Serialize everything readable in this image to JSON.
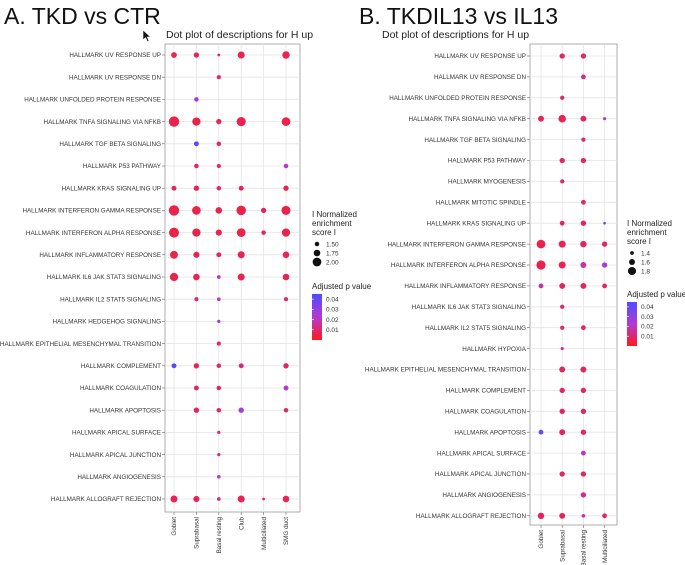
{
  "cursor": {
    "icon": "mouse-pointer-icon"
  },
  "colors": {
    "low_p": "#ff1a1a",
    "high_p": "#4d4dff",
    "mid_p": "#b23ad1"
  },
  "chart_data": [
    {
      "type": "scatter",
      "panel_title": "A. TKD vs CTR",
      "title": "Dot plot of descriptions for H up",
      "categories": [
        "Goblet",
        "Suprabasal",
        "Basal resting",
        "Club",
        "Multiciliated",
        "SMG duct"
      ],
      "rows": [
        "HALLMARK UV RESPONSE UP",
        "HALLMARK UV RESPONSE DN",
        "HALLMARK UNFOLDED PROTEIN RESPONSE",
        "HALLMARK TNFA SIGNALING VIA NFKB",
        "HALLMARK TGF BETA SIGNALING",
        "HALLMARK P53 PATHWAY",
        "HALLMARK KRAS SIGNALING UP",
        "HALLMARK INTERFERON GAMMA RESPONSE",
        "HALLMARK INTERFERON ALPHA RESPONSE",
        "HALLMARK INFLAMMATORY RESPONSE",
        "HALLMARK IL6 JAK STAT3 SIGNALING",
        "HALLMARK IL2 STAT5 SIGNALING",
        "HALLMARK HEDGEHOG SIGNALING",
        "HALLMARK EPITHELIAL MESENCHYMAL TRANSITION",
        "HALLMARK COMPLEMENT",
        "HALLMARK COAGULATION",
        "HALLMARK APOPTOSIS",
        "HALLMARK APICAL SURFACE",
        "HALLMARK APICAL JUNCTION",
        "HALLMARK ANGIOGENESIS",
        "HALLMARK ALLOGRAFT REJECTION"
      ],
      "size_range": [
        1.25,
        2.2
      ],
      "color_range": [
        0.0,
        0.045
      ],
      "points": [
        {
          "row": 0,
          "col": 0,
          "nes": 1.65,
          "p": 0.008
        },
        {
          "row": 0,
          "col": 1,
          "nes": 1.6,
          "p": 0.008
        },
        {
          "row": 0,
          "col": 2,
          "nes": 1.3,
          "p": 0.01
        },
        {
          "row": 0,
          "col": 3,
          "nes": 1.8,
          "p": 0.007
        },
        {
          "row": 0,
          "col": 5,
          "nes": 1.85,
          "p": 0.007
        },
        {
          "row": 1,
          "col": 2,
          "nes": 1.45,
          "p": 0.01
        },
        {
          "row": 2,
          "col": 1,
          "nes": 1.5,
          "p": 0.024
        },
        {
          "row": 3,
          "col": 0,
          "nes": 2.2,
          "p": 0.006
        },
        {
          "row": 3,
          "col": 1,
          "nes": 1.95,
          "p": 0.006
        },
        {
          "row": 3,
          "col": 2,
          "nes": 1.6,
          "p": 0.008
        },
        {
          "row": 3,
          "col": 3,
          "nes": 2.05,
          "p": 0.006
        },
        {
          "row": 3,
          "col": 5,
          "nes": 2.0,
          "p": 0.006
        },
        {
          "row": 4,
          "col": 1,
          "nes": 1.55,
          "p": 0.042
        },
        {
          "row": 4,
          "col": 2,
          "nes": 1.5,
          "p": 0.009
        },
        {
          "row": 5,
          "col": 1,
          "nes": 1.5,
          "p": 0.009
        },
        {
          "row": 5,
          "col": 2,
          "nes": 1.45,
          "p": 0.009
        },
        {
          "row": 5,
          "col": 5,
          "nes": 1.5,
          "p": 0.022
        },
        {
          "row": 6,
          "col": 0,
          "nes": 1.55,
          "p": 0.009
        },
        {
          "row": 6,
          "col": 1,
          "nes": 1.6,
          "p": 0.008
        },
        {
          "row": 6,
          "col": 2,
          "nes": 1.5,
          "p": 0.009
        },
        {
          "row": 6,
          "col": 3,
          "nes": 1.55,
          "p": 0.008
        },
        {
          "row": 6,
          "col": 5,
          "nes": 1.6,
          "p": 0.008
        },
        {
          "row": 7,
          "col": 0,
          "nes": 2.2,
          "p": 0.006
        },
        {
          "row": 7,
          "col": 1,
          "nes": 2.0,
          "p": 0.006
        },
        {
          "row": 7,
          "col": 2,
          "nes": 1.75,
          "p": 0.007
        },
        {
          "row": 7,
          "col": 3,
          "nes": 2.1,
          "p": 0.006
        },
        {
          "row": 7,
          "col": 4,
          "nes": 1.6,
          "p": 0.008
        },
        {
          "row": 7,
          "col": 5,
          "nes": 2.05,
          "p": 0.006
        },
        {
          "row": 8,
          "col": 0,
          "nes": 2.15,
          "p": 0.006
        },
        {
          "row": 8,
          "col": 1,
          "nes": 1.95,
          "p": 0.006
        },
        {
          "row": 8,
          "col": 2,
          "nes": 1.7,
          "p": 0.007
        },
        {
          "row": 8,
          "col": 3,
          "nes": 2.0,
          "p": 0.006
        },
        {
          "row": 8,
          "col": 4,
          "nes": 1.5,
          "p": 0.009
        },
        {
          "row": 8,
          "col": 5,
          "nes": 1.95,
          "p": 0.006
        },
        {
          "row": 9,
          "col": 0,
          "nes": 1.9,
          "p": 0.006
        },
        {
          "row": 9,
          "col": 1,
          "nes": 1.7,
          "p": 0.007
        },
        {
          "row": 9,
          "col": 2,
          "nes": 1.55,
          "p": 0.009
        },
        {
          "row": 9,
          "col": 3,
          "nes": 1.8,
          "p": 0.007
        },
        {
          "row": 9,
          "col": 5,
          "nes": 1.75,
          "p": 0.007
        },
        {
          "row": 10,
          "col": 0,
          "nes": 1.95,
          "p": 0.006
        },
        {
          "row": 10,
          "col": 1,
          "nes": 1.75,
          "p": 0.007
        },
        {
          "row": 10,
          "col": 2,
          "nes": 1.4,
          "p": 0.018
        },
        {
          "row": 10,
          "col": 3,
          "nes": 1.8,
          "p": 0.007
        },
        {
          "row": 10,
          "col": 5,
          "nes": 1.75,
          "p": 0.007
        },
        {
          "row": 11,
          "col": 1,
          "nes": 1.45,
          "p": 0.012
        },
        {
          "row": 11,
          "col": 2,
          "nes": 1.4,
          "p": 0.02
        },
        {
          "row": 11,
          "col": 5,
          "nes": 1.45,
          "p": 0.011
        },
        {
          "row": 12,
          "col": 2,
          "nes": 1.35,
          "p": 0.03
        },
        {
          "row": 13,
          "col": 2,
          "nes": 1.45,
          "p": 0.01
        },
        {
          "row": 14,
          "col": 0,
          "nes": 1.55,
          "p": 0.043
        },
        {
          "row": 14,
          "col": 1,
          "nes": 1.6,
          "p": 0.008
        },
        {
          "row": 14,
          "col": 2,
          "nes": 1.5,
          "p": 0.009
        },
        {
          "row": 14,
          "col": 3,
          "nes": 1.55,
          "p": 0.012
        },
        {
          "row": 14,
          "col": 5,
          "nes": 1.6,
          "p": 0.009
        },
        {
          "row": 15,
          "col": 1,
          "nes": 1.55,
          "p": 0.009
        },
        {
          "row": 15,
          "col": 2,
          "nes": 1.5,
          "p": 0.009
        },
        {
          "row": 15,
          "col": 5,
          "nes": 1.55,
          "p": 0.022
        },
        {
          "row": 16,
          "col": 1,
          "nes": 1.6,
          "p": 0.008
        },
        {
          "row": 16,
          "col": 2,
          "nes": 1.5,
          "p": 0.009
        },
        {
          "row": 16,
          "col": 3,
          "nes": 1.6,
          "p": 0.026
        },
        {
          "row": 16,
          "col": 5,
          "nes": 1.5,
          "p": 0.01
        },
        {
          "row": 17,
          "col": 2,
          "nes": 1.35,
          "p": 0.012
        },
        {
          "row": 18,
          "col": 2,
          "nes": 1.35,
          "p": 0.012
        },
        {
          "row": 19,
          "col": 2,
          "nes": 1.4,
          "p": 0.022
        },
        {
          "row": 20,
          "col": 0,
          "nes": 1.8,
          "p": 0.007
        },
        {
          "row": 20,
          "col": 1,
          "nes": 1.7,
          "p": 0.007
        },
        {
          "row": 20,
          "col": 2,
          "nes": 1.4,
          "p": 0.012
        },
        {
          "row": 20,
          "col": 3,
          "nes": 1.8,
          "p": 0.007
        },
        {
          "row": 20,
          "col": 4,
          "nes": 1.3,
          "p": 0.01
        },
        {
          "row": 20,
          "col": 5,
          "nes": 1.75,
          "p": 0.007
        }
      ],
      "size_legend": {
        "title": "I Normalized\nenrichment\nscore I",
        "values": [
          1.5,
          1.75,
          2.0
        ],
        "labels": [
          "1.50",
          "1.75",
          "2.00"
        ]
      },
      "color_legend": {
        "title": "Adjusted p value",
        "ticks": [
          0.04,
          0.03,
          0.02,
          0.01
        ],
        "labels": [
          "0.04",
          "0.03",
          "0.02",
          "0.01"
        ]
      }
    },
    {
      "type": "scatter",
      "panel_title": "B. TKDIL13 vs IL13",
      "title": "Dot plot of descriptions for H up",
      "categories": [
        "Goblet",
        "Suprabasal",
        "Basal resting",
        "Multiciliated"
      ],
      "rows": [
        "HALLMARK UV RESPONSE UP",
        "HALLMARK UV RESPONSE DN",
        "HALLMARK UNFOLDED PROTEIN RESPONSE",
        "HALLMARK TNFA SIGNALING VIA NFKB",
        "HALLMARK TGF BETA SIGNALING",
        "HALLMARK P53 PATHWAY",
        "HALLMARK MYOGENESIS",
        "HALLMARK MITOTIC SPINDLE",
        "HALLMARK KRAS SIGNALING UP",
        "HALLMARK INTERFERON GAMMA RESPONSE",
        "HALLMARK INTERFERON ALPHA RESPONSE",
        "HALLMARK INFLAMMATORY RESPONSE",
        "HALLMARK IL6 JAK STAT3 SIGNALING",
        "HALLMARK IL2 STAT5 SIGNALING",
        "HALLMARK HYPOXIA",
        "HALLMARK EPITHELIAL MESENCHYMAL TRANSITION",
        "HALLMARK COMPLEMENT",
        "HALLMARK COAGULATION",
        "HALLMARK APOPTOSIS",
        "HALLMARK APICAL SURFACE",
        "HALLMARK APICAL JUNCTION",
        "HALLMARK ANGIOGENESIS",
        "HALLMARK ALLOGRAFT REJECTION"
      ],
      "size_range": [
        1.3,
        1.9
      ],
      "color_range": [
        0.0,
        0.045
      ],
      "points": [
        {
          "row": 0,
          "col": 1,
          "nes": 1.55,
          "p": 0.009
        },
        {
          "row": 0,
          "col": 2,
          "nes": 1.55,
          "p": 0.009
        },
        {
          "row": 1,
          "col": 2,
          "nes": 1.5,
          "p": 0.014
        },
        {
          "row": 2,
          "col": 1,
          "nes": 1.45,
          "p": 0.01
        },
        {
          "row": 3,
          "col": 0,
          "nes": 1.6,
          "p": 0.008
        },
        {
          "row": 3,
          "col": 1,
          "nes": 1.75,
          "p": 0.007
        },
        {
          "row": 3,
          "col": 2,
          "nes": 1.6,
          "p": 0.008
        },
        {
          "row": 3,
          "col": 3,
          "nes": 1.35,
          "p": 0.028
        },
        {
          "row": 4,
          "col": 2,
          "nes": 1.45,
          "p": 0.01
        },
        {
          "row": 5,
          "col": 1,
          "nes": 1.55,
          "p": 0.009
        },
        {
          "row": 5,
          "col": 2,
          "nes": 1.55,
          "p": 0.009
        },
        {
          "row": 6,
          "col": 1,
          "nes": 1.45,
          "p": 0.01
        },
        {
          "row": 7,
          "col": 2,
          "nes": 1.5,
          "p": 0.01
        },
        {
          "row": 8,
          "col": 1,
          "nes": 1.5,
          "p": 0.009
        },
        {
          "row": 8,
          "col": 2,
          "nes": 1.55,
          "p": 0.009
        },
        {
          "row": 8,
          "col": 3,
          "nes": 1.3,
          "p": 0.04
        },
        {
          "row": 9,
          "col": 0,
          "nes": 1.85,
          "p": 0.006
        },
        {
          "row": 9,
          "col": 1,
          "nes": 1.7,
          "p": 0.007
        },
        {
          "row": 9,
          "col": 2,
          "nes": 1.65,
          "p": 0.008
        },
        {
          "row": 9,
          "col": 3,
          "nes": 1.55,
          "p": 0.009
        },
        {
          "row": 10,
          "col": 0,
          "nes": 1.9,
          "p": 0.006
        },
        {
          "row": 10,
          "col": 1,
          "nes": 1.7,
          "p": 0.007
        },
        {
          "row": 10,
          "col": 2,
          "nes": 1.6,
          "p": 0.016
        },
        {
          "row": 10,
          "col": 3,
          "nes": 1.55,
          "p": 0.024
        },
        {
          "row": 11,
          "col": 0,
          "nes": 1.5,
          "p": 0.018
        },
        {
          "row": 11,
          "col": 1,
          "nes": 1.6,
          "p": 0.008
        },
        {
          "row": 11,
          "col": 2,
          "nes": 1.6,
          "p": 0.008
        },
        {
          "row": 11,
          "col": 3,
          "nes": 1.5,
          "p": 0.009
        },
        {
          "row": 12,
          "col": 1,
          "nes": 1.45,
          "p": 0.01
        },
        {
          "row": 13,
          "col": 1,
          "nes": 1.45,
          "p": 0.01
        },
        {
          "row": 13,
          "col": 2,
          "nes": 1.5,
          "p": 0.009
        },
        {
          "row": 14,
          "col": 1,
          "nes": 1.35,
          "p": 0.015
        },
        {
          "row": 15,
          "col": 1,
          "nes": 1.6,
          "p": 0.008
        },
        {
          "row": 15,
          "col": 2,
          "nes": 1.6,
          "p": 0.008
        },
        {
          "row": 16,
          "col": 1,
          "nes": 1.55,
          "p": 0.009
        },
        {
          "row": 16,
          "col": 2,
          "nes": 1.55,
          "p": 0.009
        },
        {
          "row": 17,
          "col": 1,
          "nes": 1.55,
          "p": 0.009
        },
        {
          "row": 17,
          "col": 2,
          "nes": 1.55,
          "p": 0.009
        },
        {
          "row": 18,
          "col": 0,
          "nes": 1.5,
          "p": 0.04
        },
        {
          "row": 18,
          "col": 1,
          "nes": 1.6,
          "p": 0.008
        },
        {
          "row": 18,
          "col": 2,
          "nes": 1.55,
          "p": 0.009
        },
        {
          "row": 19,
          "col": 2,
          "nes": 1.5,
          "p": 0.02
        },
        {
          "row": 20,
          "col": 1,
          "nes": 1.55,
          "p": 0.009
        },
        {
          "row": 20,
          "col": 2,
          "nes": 1.55,
          "p": 0.009
        },
        {
          "row": 21,
          "col": 2,
          "nes": 1.55,
          "p": 0.014
        },
        {
          "row": 22,
          "col": 0,
          "nes": 1.65,
          "p": 0.008
        },
        {
          "row": 22,
          "col": 1,
          "nes": 1.6,
          "p": 0.008
        },
        {
          "row": 22,
          "col": 2,
          "nes": 1.4,
          "p": 0.02
        },
        {
          "row": 22,
          "col": 3,
          "nes": 1.5,
          "p": 0.01
        }
      ],
      "size_legend": {
        "title": "I Normalized\nenrichment\nscore I",
        "values": [
          1.4,
          1.6,
          1.8
        ],
        "labels": [
          "1.4",
          "1.6",
          "1.8"
        ]
      },
      "color_legend": {
        "title": "Adjusted p value",
        "ticks": [
          0.04,
          0.03,
          0.02,
          0.01
        ],
        "labels": [
          "0.04",
          "0.03",
          "0.02",
          "0.01"
        ]
      }
    }
  ]
}
